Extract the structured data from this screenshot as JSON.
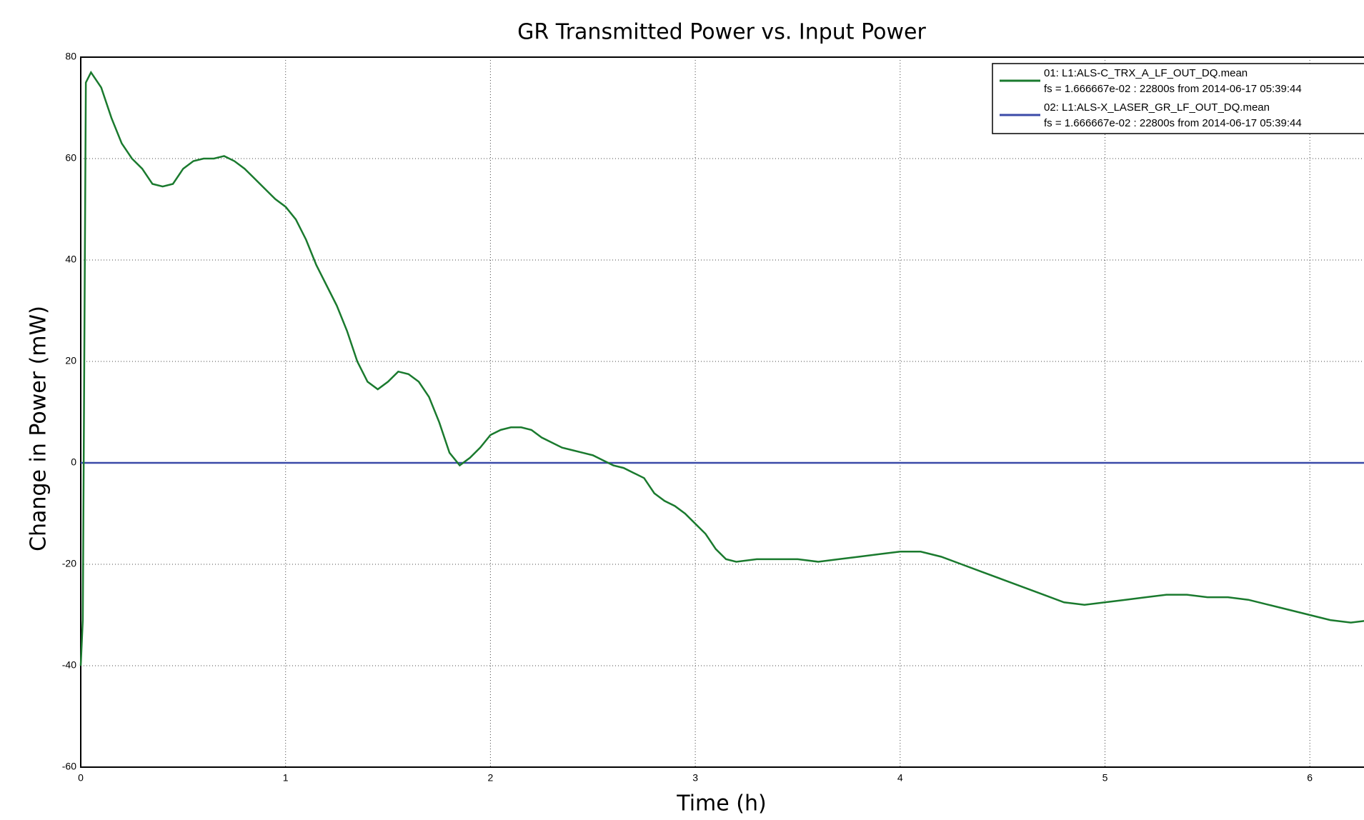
{
  "chart_data": {
    "type": "line",
    "title": "GR Transmitted Power vs. Input Power",
    "x_label": "Time (h)",
    "y_label": "Change in Power (mW)",
    "xlim": [
      0,
      6.333
    ],
    "ylim": [
      -60,
      80
    ],
    "xticks": [
      0,
      1,
      2,
      3,
      4,
      5,
      6
    ],
    "yticks": [
      -60,
      -40,
      -20,
      0,
      20,
      40,
      60,
      80
    ],
    "grid": true,
    "legend": "upper right",
    "series": [
      {
        "name": "01: L1:ALS-C_TRX_A_LF_OUT_DQ.mean",
        "info": "fs = 1.666667e-02 : 22800s from 2014-06-17 05:39:44",
        "color": "#1a7a2e",
        "x": [
          0,
          0.01,
          0.025,
          0.05,
          0.1,
          0.15,
          0.2,
          0.25,
          0.3,
          0.35,
          0.4,
          0.45,
          0.5,
          0.55,
          0.6,
          0.65,
          0.7,
          0.75,
          0.8,
          0.85,
          0.9,
          0.95,
          1.0,
          1.05,
          1.1,
          1.15,
          1.2,
          1.25,
          1.3,
          1.35,
          1.4,
          1.45,
          1.5,
          1.55,
          1.6,
          1.65,
          1.7,
          1.75,
          1.8,
          1.85,
          1.9,
          1.95,
          2.0,
          2.05,
          2.1,
          2.15,
          2.2,
          2.25,
          2.3,
          2.35,
          2.4,
          2.45,
          2.5,
          2.55,
          2.6,
          2.65,
          2.7,
          2.75,
          2.8,
          2.85,
          2.9,
          2.95,
          3.0,
          3.05,
          3.1,
          3.15,
          3.2,
          3.3,
          3.4,
          3.5,
          3.6,
          3.7,
          3.8,
          3.9,
          4.0,
          4.1,
          4.2,
          4.3,
          4.4,
          4.5,
          4.6,
          4.7,
          4.8,
          4.9,
          5.0,
          5.1,
          5.2,
          5.3,
          5.4,
          5.5,
          5.6,
          5.7,
          5.8,
          5.9,
          6.0,
          6.1,
          6.2,
          6.3
        ],
        "values": [
          -40,
          -31,
          75,
          77,
          74,
          68,
          63,
          60,
          58,
          55,
          54.5,
          55,
          58,
          59.5,
          60,
          60,
          60.5,
          59.5,
          58,
          56,
          54,
          52,
          50.5,
          48,
          44,
          39,
          35,
          31,
          26,
          20,
          16,
          14.5,
          16,
          18,
          17.5,
          16,
          13,
          8,
          2,
          -0.5,
          1,
          3,
          5.5,
          6.5,
          7,
          7,
          6.5,
          5,
          4,
          3,
          2.5,
          2,
          1.5,
          0.5,
          -0.5,
          -1,
          -2,
          -3,
          -6,
          -7.5,
          -8.5,
          -10,
          -12,
          -14,
          -17,
          -19,
          -19.5,
          -19,
          -19,
          -19,
          -19.5,
          -19,
          -18.5,
          -18,
          -17.5,
          -17.5,
          -18.5,
          -20,
          -21.5,
          -23,
          -24.5,
          -26,
          -27.5,
          -28,
          -27.5,
          -27,
          -26.5,
          -26,
          -26,
          -26.5,
          -26.5,
          -27,
          -28,
          -29,
          -30,
          -31,
          -31.5,
          -31
        ]
      },
      {
        "name": "02: L1:ALS-X_LASER_GR_LF_OUT_DQ.mean",
        "info": "fs = 1.666667e-02 : 22800s from 2014-06-17 05:39:44",
        "color": "#3a4aa8",
        "x": [
          0,
          6.333
        ],
        "values": [
          0,
          0
        ]
      }
    ]
  }
}
